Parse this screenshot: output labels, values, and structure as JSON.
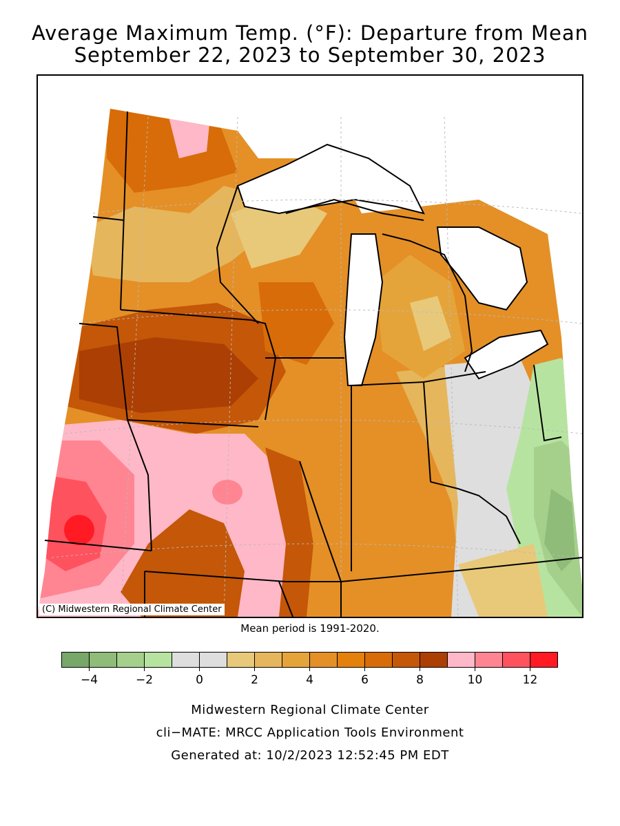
{
  "title": {
    "line1": "Average Maximum Temp. (°F): Departure from Mean",
    "line2": "September 22, 2023 to September 30, 2023"
  },
  "map": {
    "copyright": "(C) Midwestern Regional Climate Center",
    "region": "Midwest United States",
    "colors": {
      "lake": "#ffffff",
      "border": "#000000",
      "grid": "#b9b9b9"
    }
  },
  "mean_note": "Mean period is 1991-2020.",
  "legend": {
    "bins": [
      {
        "min": -5,
        "max": -4,
        "color": "#77a86a"
      },
      {
        "min": -4,
        "max": -3,
        "color": "#8fbc78"
      },
      {
        "min": -3,
        "max": -2,
        "color": "#a4d08c"
      },
      {
        "min": -2,
        "max": -1,
        "color": "#b6e4a0"
      },
      {
        "min": -1,
        "max": 0,
        "color": "#dedede"
      },
      {
        "min": 0,
        "max": 1,
        "color": "#dedede"
      },
      {
        "min": 1,
        "max": 2,
        "color": "#e8c97a"
      },
      {
        "min": 2,
        "max": 3,
        "color": "#e6b65c"
      },
      {
        "min": 3,
        "max": 4,
        "color": "#e5a43a"
      },
      {
        "min": 4,
        "max": 5,
        "color": "#e49027"
      },
      {
        "min": 5,
        "max": 6,
        "color": "#e4800c"
      },
      {
        "min": 6,
        "max": 7,
        "color": "#d86c08"
      },
      {
        "min": 7,
        "max": 8,
        "color": "#c45708"
      },
      {
        "min": 8,
        "max": 9,
        "color": "#ac3f04"
      },
      {
        "min": 9,
        "max": 10,
        "color": "#ffb8c7"
      },
      {
        "min": 10,
        "max": 11,
        "color": "#ff8592"
      },
      {
        "min": 11,
        "max": 12,
        "color": "#ff525f"
      },
      {
        "min": 12,
        "max": 13,
        "color": "#ff1a24"
      }
    ],
    "tick_labels": [
      "−4",
      "−2",
      "0",
      "2",
      "4",
      "6",
      "8",
      "10",
      "12"
    ],
    "tick_values": [
      -4,
      -2,
      0,
      2,
      4,
      6,
      8,
      10,
      12
    ]
  },
  "footer": {
    "line1": "Midwestern Regional Climate Center",
    "line2": "cli−MATE: MRCC Application Tools Environment",
    "line3": "Generated at: 10/2/2023 12:52:45 PM EDT"
  }
}
